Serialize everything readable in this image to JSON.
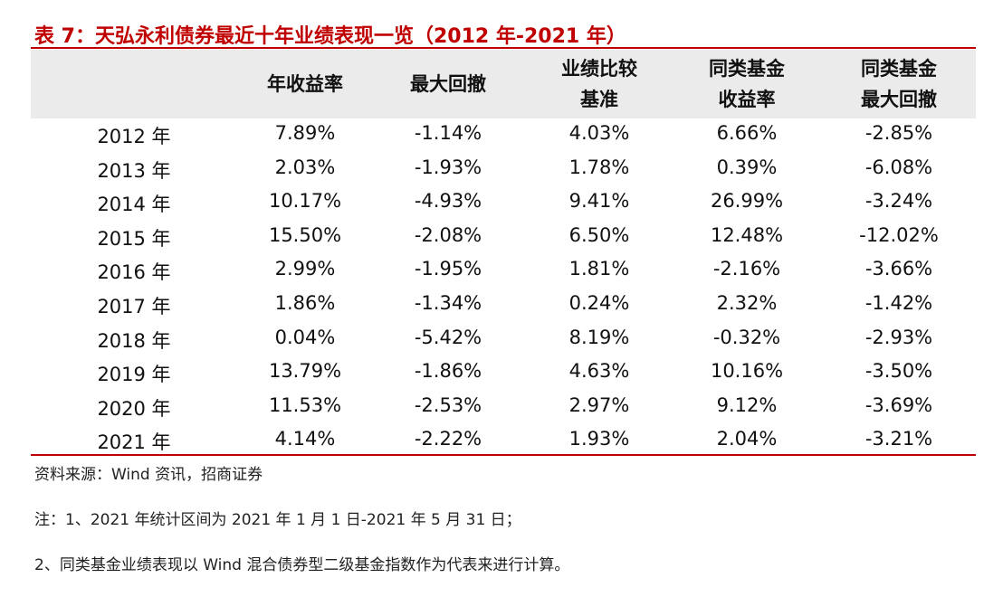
{
  "title": "表 7：天弘永利债券最近十年业绩表现一览（2012 年-2021 年）",
  "table": {
    "header": [
      [
        "年收益率"
      ],
      [
        "最大回撤"
      ],
      [
        "业绩比较",
        "基准"
      ],
      [
        "同类基金",
        "收益率"
      ],
      [
        "同类基金",
        "最大回撤"
      ]
    ],
    "rows": [
      [
        "2012 年",
        "7.89%",
        "-1.14%",
        "4.03%",
        "6.66%",
        "-2.85%"
      ],
      [
        "2013 年",
        "2.03%",
        "-1.93%",
        "1.78%",
        "0.39%",
        "-6.08%"
      ],
      [
        "2014 年",
        "10.17%",
        "-4.93%",
        "9.41%",
        "26.99%",
        "-3.24%"
      ],
      [
        "2015 年",
        "15.50%",
        "-2.08%",
        "6.50%",
        "12.48%",
        "-12.02%"
      ],
      [
        "2016 年",
        "2.99%",
        "-1.95%",
        "1.81%",
        "-2.16%",
        "-3.66%"
      ],
      [
        "2017 年",
        "1.86%",
        "-1.34%",
        "0.24%",
        "2.32%",
        "-1.42%"
      ],
      [
        "2018 年",
        "0.04%",
        "-5.42%",
        "8.19%",
        "-0.32%",
        "-2.93%"
      ],
      [
        "2019 年",
        "13.79%",
        "-1.86%",
        "4.63%",
        "10.16%",
        "-3.50%"
      ],
      [
        "2020 年",
        "11.53%",
        "-2.53%",
        "2.97%",
        "9.12%",
        "-3.69%"
      ],
      [
        "2021 年",
        "4.14%",
        "-2.22%",
        "1.93%",
        "2.04%",
        "-3.21%"
      ]
    ]
  },
  "source": "资料来源：Wind 资讯，招商证券",
  "notes": [
    "注：1、2021 年统计区间为 2021 年 1 月 1 日-2021 年 5 月 31 日；",
    "2、同类基金业绩表现以 Wind 混合债券型二级基金指数作为代表来进行计算。"
  ]
}
